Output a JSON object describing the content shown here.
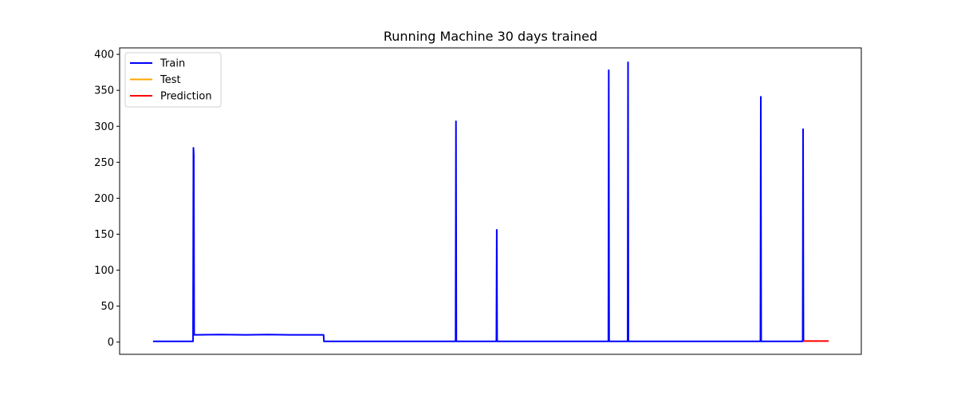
{
  "chart_data": {
    "type": "line",
    "title": "Running Machine 30 days trained",
    "xlabel": "",
    "ylabel": "",
    "x_ticks_visible": false,
    "xlim": [
      0,
      1000
    ],
    "ylim": [
      -17,
      409
    ],
    "y_ticks": [
      0,
      50,
      100,
      150,
      200,
      250,
      300,
      350,
      400
    ],
    "grid": false,
    "legend": {
      "placement": "top-left",
      "entries": [
        {
          "name": "Train",
          "color": "#0000ff"
        },
        {
          "name": "Test",
          "color": "#ffa500"
        },
        {
          "name": "Prediction",
          "color": "#ff0000"
        }
      ]
    },
    "series": [
      {
        "name": "Train",
        "color": "#0000ff",
        "points": [
          [
            45,
            1
          ],
          [
            99,
            1
          ],
          [
            99.5,
            270
          ],
          [
            100,
            260
          ],
          [
            100.5,
            10
          ],
          [
            136,
            10.5
          ],
          [
            170,
            10
          ],
          [
            200,
            10.5
          ],
          [
            230,
            10
          ],
          [
            275,
            10
          ],
          [
            275.5,
            1
          ],
          [
            453,
            1
          ],
          [
            453.5,
            307
          ],
          [
            454,
            1
          ],
          [
            508,
            1
          ],
          [
            508.5,
            156
          ],
          [
            509,
            1
          ],
          [
            659,
            1
          ],
          [
            659.5,
            378
          ],
          [
            660,
            1
          ],
          [
            685,
            1
          ],
          [
            685.5,
            389
          ],
          [
            686,
            1
          ],
          [
            864,
            1
          ],
          [
            864.5,
            341
          ],
          [
            865,
            1
          ],
          [
            921,
            1
          ],
          [
            921.5,
            296
          ],
          [
            922,
            1
          ]
        ]
      },
      {
        "name": "Test",
        "color": "#ffa500",
        "points": []
      },
      {
        "name": "Prediction",
        "color": "#ff0000",
        "points": [
          [
            922,
            1.5
          ],
          [
            956,
            1.5
          ]
        ]
      }
    ]
  }
}
